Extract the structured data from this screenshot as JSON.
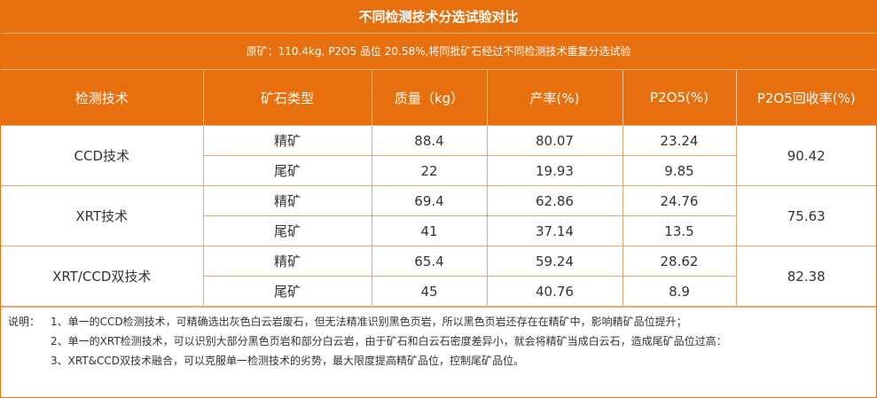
{
  "title": "不同检测技术分选试验对比",
  "subtitle": "原矿：110.4kg,    P2O5 品位 20.58%,将同批矿石经过不同检测技术重复分选试验",
  "headers": [
    "检测技术",
    "矿石类型",
    "质量（kg）",
    "产率(%)",
    "P2O5(%)",
    "P2O5回收率(%)"
  ],
  "groups": [
    {
      "tech": "CCD技术",
      "recovery": "90.42",
      "rows": [
        {
          "type": "精矿",
          "mass": "88.4",
          "yield": "80.07",
          "p2o5": "23.24"
        },
        {
          "type": "尾矿",
          "mass": "22",
          "yield": "19.93",
          "p2o5": "9.85"
        }
      ]
    },
    {
      "tech": "XRT技术",
      "recovery": "75.63",
      "rows": [
        {
          "type": "精矿",
          "mass": "69.4",
          "yield": "62.86",
          "p2o5": "24.76"
        },
        {
          "type": "尾矿",
          "mass": "41",
          "yield": "37.14",
          "p2o5": "13.5"
        }
      ]
    },
    {
      "tech": "XRT/CCD双技术",
      "recovery": "82.38",
      "rows": [
        {
          "type": "精矿",
          "mass": "65.4",
          "yield": "59.24",
          "p2o5": "28.62"
        },
        {
          "type": "尾矿",
          "mass": "45",
          "yield": "40.76",
          "p2o5": "8.9"
        }
      ]
    }
  ],
  "notes": {
    "lead": "说明：",
    "items": [
      "1、单一的CCD检测技术，可精确选出灰色白云岩废石，但无法精准识别黑色页岩，所以黑色页岩还存在在精矿中，影响精矿品位提升；",
      "2、单一的XRT检测技术，可以识别大部分黑色页岩和部分白云岩，由于矿石和白云石密度差异小，就会将精矿当成白云石，造成尾矿品位过高：",
      "3、XRT&CCD双技术融合，可以克服单一检测技术的劣势，最大限度提高精矿品位，控制尾矿品位。"
    ]
  },
  "colors": {
    "accent": "#e86f0e",
    "grid_line": "#e9a66e",
    "text": "#333333"
  }
}
